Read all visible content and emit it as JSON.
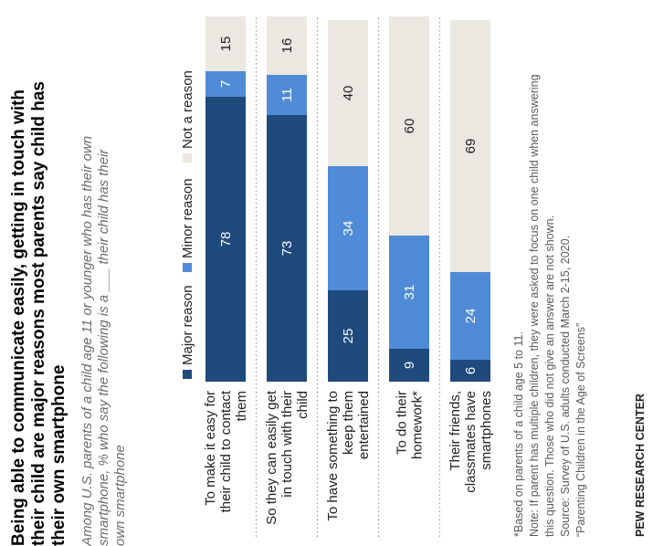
{
  "title": "Being able to communicate easily, getting in touch with their child are major reasons most parents say child has their own smartphone",
  "subtitle": "Among U.S. parents of a child age 11 or younger who has their own smartphone, % who say the following is a ___ their child has their own smartphone",
  "notes": [
    "*Based on parents of a child age 5 to 11.",
    "Note: If parent has multiple children, they were asked to focus on one child when answering",
    "this question. Those who did not give an answer are not shown.",
    "Source: Survey of U.S. adults conducted March 2-15, 2020.",
    "“Parenting Children in the Age of Screens”"
  ],
  "source_org": "PEW RESEARCH CENTER",
  "colors": {
    "major": "#1f4a7c",
    "minor": "#4f8bd6",
    "not": "#ebe8e2"
  },
  "chart_data": {
    "type": "bar",
    "stacked": true,
    "orientation": "horizontal",
    "categories": [
      [
        "To make it easy for",
        "their child to contact",
        "them"
      ],
      [
        "So they can easily get",
        "in touch with their",
        "child"
      ],
      [
        "To have something to",
        "keep them",
        "entertained"
      ],
      [
        "To do their",
        "homework*"
      ],
      [
        "Their friends,",
        "classmates have",
        "smartphones"
      ]
    ],
    "series": [
      {
        "name": "Major reason",
        "values": [
          78,
          73,
          25,
          9,
          6
        ]
      },
      {
        "name": "Minor reason",
        "values": [
          7,
          11,
          34,
          31,
          24
        ]
      },
      {
        "name": "Not a reason",
        "values": [
          15,
          16,
          40,
          60,
          69
        ]
      }
    ],
    "xlim": [
      0,
      100
    ],
    "legend": "top"
  }
}
